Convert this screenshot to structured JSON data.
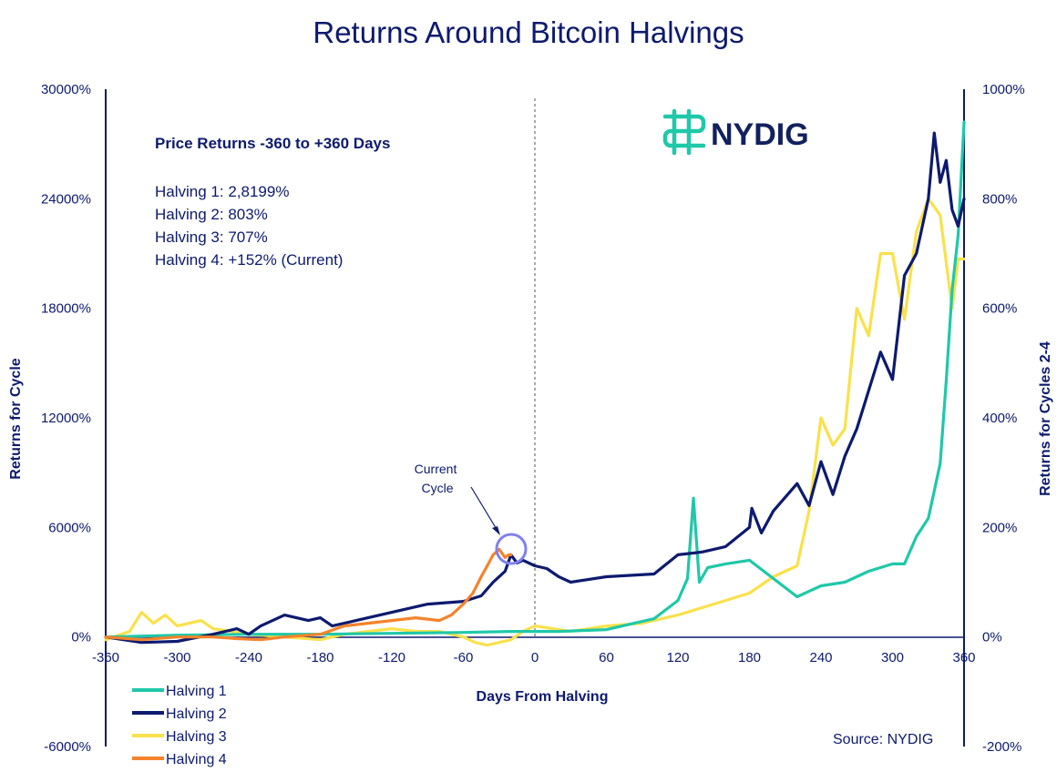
{
  "chart_data": {
    "type": "line",
    "title": "Returns Around Bitcoin Halvings",
    "xlabel": "Days From Halving",
    "ylabel_left": "Returns for Cycle",
    "ylabel_right": "Returns for Cycles 2-4",
    "xlim": [
      -360,
      360
    ],
    "ylim_left": [
      -6000,
      30000
    ],
    "ylim_right": [
      -200,
      1000
    ],
    "x_ticks": [
      "-360",
      "-300",
      "-240",
      "-180",
      "-120",
      "-60",
      "0",
      "60",
      "120",
      "180",
      "240",
      "300",
      "360"
    ],
    "y_ticks_left": [
      "-6000%",
      "0%",
      "6000%",
      "12000%",
      "18000%",
      "24000%",
      "30000%"
    ],
    "y_ticks_right": [
      "-200%",
      "0%",
      "200%",
      "400%",
      "600%",
      "800%",
      "1000%"
    ],
    "halving_marker_x": 0,
    "series": [
      {
        "name": "Halving 1",
        "axis": "left",
        "color": "#1fc8a9",
        "x": [
          -360,
          -300,
          -240,
          -180,
          -120,
          -60,
          -20,
          0,
          20,
          60,
          100,
          120,
          128,
          133,
          138,
          145,
          160,
          180,
          200,
          220,
          240,
          260,
          280,
          300,
          310,
          320,
          330,
          340,
          345,
          350,
          355,
          360
        ],
        "y": [
          0,
          100,
          150,
          150,
          200,
          250,
          300,
          300,
          300,
          400,
          1000,
          2000,
          3200,
          7600,
          3000,
          3800,
          4000,
          4200,
          3200,
          2200,
          2800,
          3000,
          3600,
          4000,
          4000,
          5500,
          6500,
          9500,
          14000,
          19000,
          22000,
          28200
        ]
      },
      {
        "name": "Halving 2",
        "axis": "right",
        "color": "#0d1a6e",
        "x": [
          -360,
          -330,
          -300,
          -270,
          -250,
          -240,
          -230,
          -210,
          -190,
          -180,
          -170,
          -150,
          -120,
          -90,
          -60,
          -45,
          -35,
          -25,
          -20,
          -15,
          -10,
          0,
          10,
          20,
          30,
          60,
          100,
          120,
          140,
          160,
          180,
          182,
          190,
          200,
          220,
          230,
          240,
          250,
          260,
          270,
          290,
          300,
          310,
          320,
          330,
          335,
          340,
          345,
          350,
          355,
          360
        ],
        "y": [
          0,
          -10,
          -8,
          5,
          15,
          5,
          20,
          40,
          30,
          35,
          20,
          30,
          45,
          60,
          65,
          75,
          100,
          120,
          150,
          135,
          140,
          130,
          125,
          110,
          100,
          110,
          115,
          150,
          155,
          165,
          200,
          235,
          190,
          230,
          280,
          240,
          320,
          260,
          330,
          380,
          520,
          470,
          660,
          700,
          800,
          920,
          830,
          870,
          780,
          750,
          800
        ]
      },
      {
        "name": "Halving 3",
        "axis": "right",
        "color": "#f9e14b",
        "x": [
          -360,
          -340,
          -330,
          -320,
          -310,
          -300,
          -280,
          -270,
          -240,
          -210,
          -180,
          -160,
          -140,
          -120,
          -100,
          -80,
          -60,
          -50,
          -40,
          -30,
          -20,
          -10,
          0,
          30,
          60,
          90,
          120,
          150,
          180,
          200,
          220,
          230,
          240,
          250,
          260,
          270,
          280,
          290,
          300,
          310,
          320,
          330,
          340,
          350,
          355,
          360
        ],
        "y": [
          -5,
          10,
          45,
          25,
          40,
          20,
          30,
          15,
          5,
          0,
          -5,
          5,
          10,
          15,
          10,
          10,
          0,
          -10,
          -15,
          -10,
          -5,
          10,
          20,
          10,
          20,
          25,
          40,
          60,
          80,
          110,
          130,
          230,
          400,
          350,
          380,
          600,
          550,
          700,
          700,
          580,
          740,
          800,
          770,
          600,
          690,
          690
        ]
      },
      {
        "name": "Halving 4",
        "axis": "right",
        "color": "#f5832a",
        "x": [
          -360,
          -330,
          -300,
          -270,
          -250,
          -230,
          -210,
          -180,
          -160,
          -140,
          -120,
          -100,
          -80,
          -70,
          -60,
          -52,
          -45,
          -40,
          -35,
          -30,
          -25,
          -22,
          -20
        ],
        "y": [
          0,
          -5,
          0,
          0,
          -3,
          -5,
          0,
          5,
          20,
          25,
          30,
          35,
          30,
          40,
          60,
          80,
          110,
          130,
          150,
          160,
          145,
          150,
          150
        ]
      }
    ],
    "annotation": "Current Cycle",
    "stats_title": "Price Returns -360 to +360 Days",
    "stats_lines": [
      "Halving 1: 2,8199%",
      "Halving 2: 803%",
      "Halving 3: 707%",
      "Halving 4: +152% (Current)"
    ],
    "source": "Source: NYDIG",
    "logo_text": "NYDIG",
    "colors": {
      "text": "#0d1a6e",
      "logo": "#1fc8a9",
      "circle": "#8080f0"
    }
  }
}
